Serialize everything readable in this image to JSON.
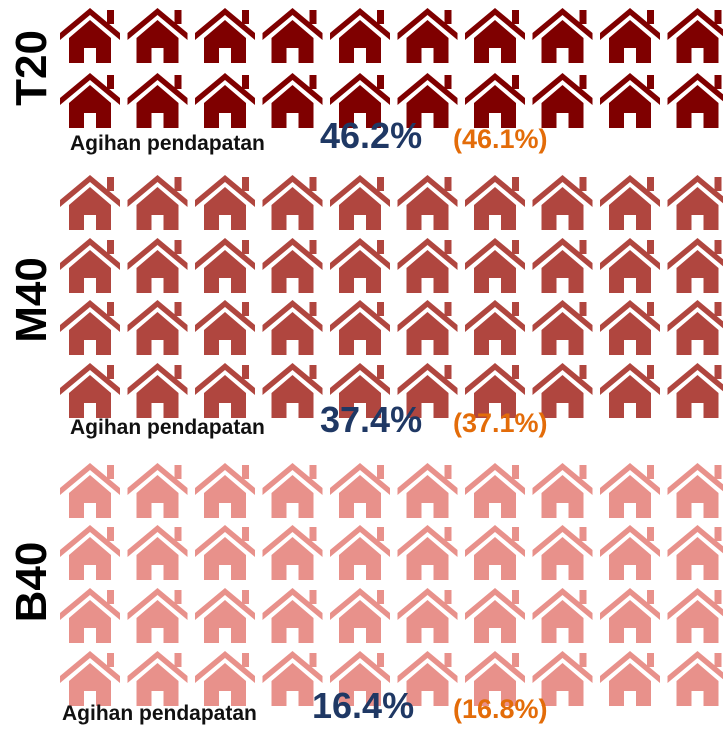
{
  "groups": [
    {
      "label": "T20",
      "caption": "Agihan pendapatan",
      "value": "46.2%",
      "previous": "(46.1%)",
      "color": "#7f0000"
    },
    {
      "label": "M40",
      "caption": "Agihan pendapatan",
      "value": "37.4%",
      "previous": "(37.1%)",
      "color": "#b0463f"
    },
    {
      "label": "B40",
      "caption": "Agihan pendapatan",
      "value": "16.4%",
      "previous": "(16.8%)",
      "color": "#e8918b"
    }
  ]
}
